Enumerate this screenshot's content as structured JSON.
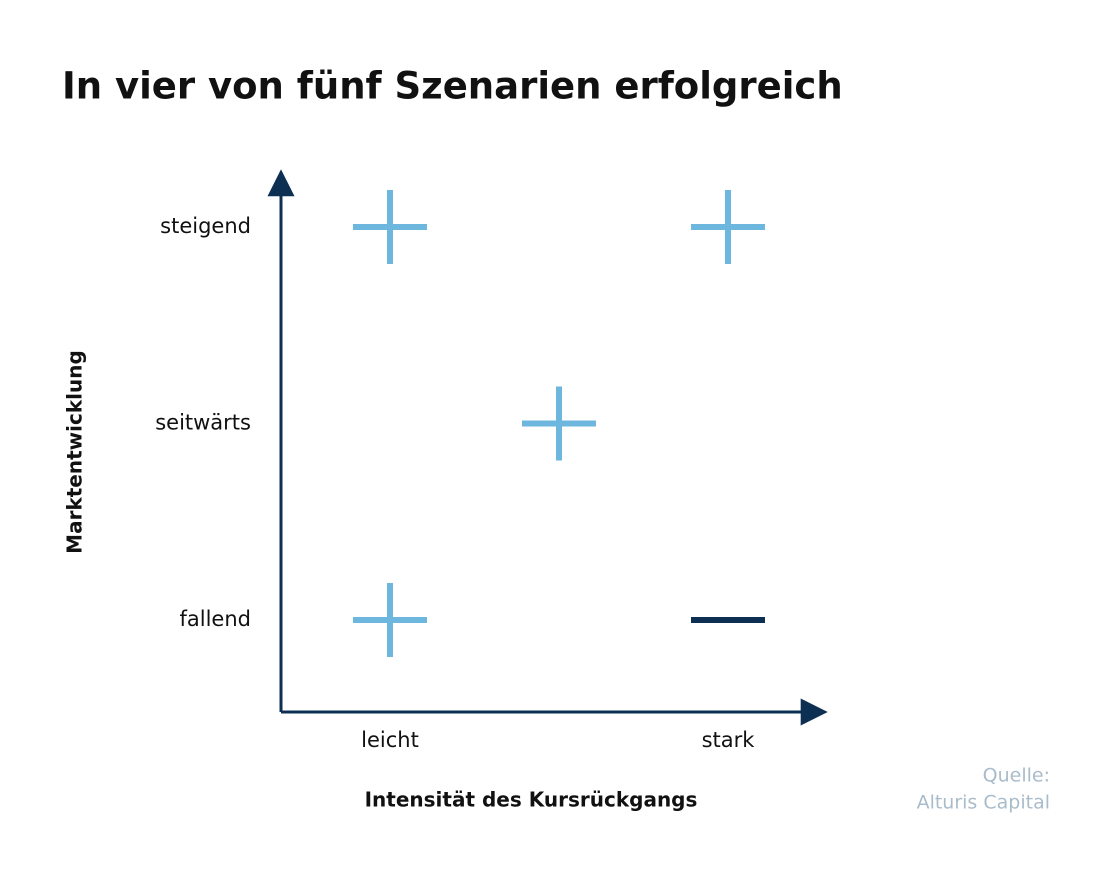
{
  "chart_data": {
    "type": "symbol-matrix",
    "title": "In vier von fünf Szenarien erfolgreich",
    "x_label": "Intensität des Kursrückgangs",
    "y_label": "Marktentwicklung",
    "x_categories": [
      "leicht",
      null,
      "stark"
    ],
    "y_categories": [
      "fallend",
      "seitwärts",
      "steigend"
    ],
    "points": [
      {
        "x": 0,
        "y": 2,
        "marker": "plus",
        "color": "#6db6dd"
      },
      {
        "x": 2,
        "y": 2,
        "marker": "plus",
        "color": "#6db6dd"
      },
      {
        "x": 1,
        "y": 1,
        "marker": "plus",
        "color": "#6db6dd"
      },
      {
        "x": 0,
        "y": 0,
        "marker": "plus",
        "color": "#6db6dd"
      },
      {
        "x": 2,
        "y": 0,
        "marker": "minus",
        "color": "#0d2f52"
      }
    ],
    "source": [
      "Quelle:",
      "Alturis Capital"
    ]
  }
}
